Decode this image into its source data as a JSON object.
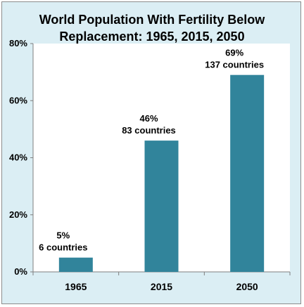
{
  "chart_data": {
    "type": "bar",
    "title_lines": [
      "World Population With Fertility Below",
      "Replacement: 1965, 2015, 2050"
    ],
    "categories": [
      "1965",
      "2015",
      "2050"
    ],
    "values": [
      5,
      46,
      69
    ],
    "data_labels": [
      [
        "5%",
        "6 countries"
      ],
      [
        "46%",
        "83 countries"
      ],
      [
        "69%",
        "137 countries"
      ]
    ],
    "ylim": [
      0,
      80
    ],
    "yticks": [
      0,
      20,
      40,
      60,
      80
    ],
    "ytick_labels": [
      "0%",
      "20%",
      "40%",
      "60%",
      "80%"
    ],
    "xlabel": "",
    "ylabel": "",
    "grid": false,
    "legend": "none",
    "colors": {
      "bar": "#31849b",
      "background": "#dbeef4",
      "plot_area": "#ffffff",
      "axis": "#7f7f7f"
    }
  }
}
